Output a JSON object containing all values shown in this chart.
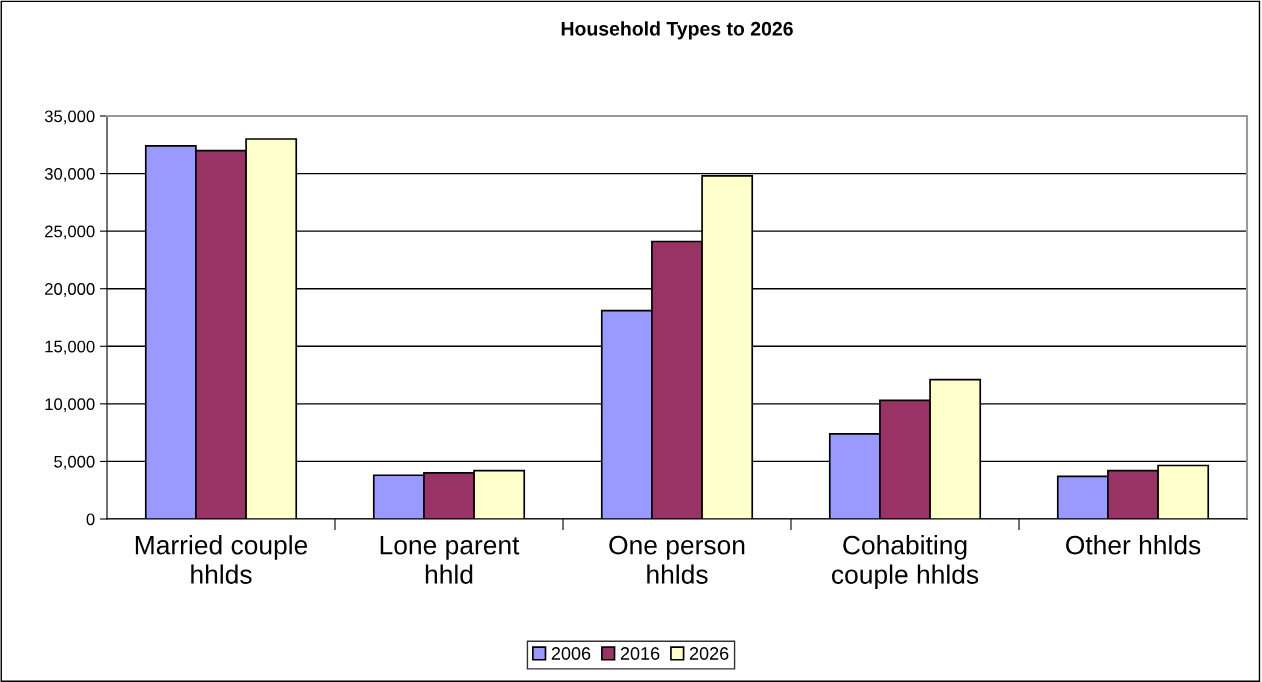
{
  "chart_data": {
    "type": "bar",
    "title": "Household Types to 2026",
    "categories": [
      "Married couple\nhhlds",
      "Lone parent\nhhld",
      "One person\nhhlds",
      "Cohabiting\ncouple hhlds",
      "Other hhlds"
    ],
    "series": [
      {
        "name": "2006",
        "color": "#9999ff",
        "values": [
          32400,
          3800,
          18100,
          7400,
          3700
        ]
      },
      {
        "name": "2016",
        "color": "#993366",
        "values": [
          32000,
          4000,
          24100,
          10300,
          4200
        ]
      },
      {
        "name": "2026",
        "color": "#ffffcc",
        "values": [
          33000,
          4200,
          29800,
          12100,
          4650
        ]
      }
    ],
    "ylim": [
      0,
      35000
    ],
    "yticks": [
      {
        "value": 0,
        "label": "0"
      },
      {
        "value": 5000,
        "label": "5,000"
      },
      {
        "value": 10000,
        "label": "10,000"
      },
      {
        "value": 15000,
        "label": "15,000"
      },
      {
        "value": 20000,
        "label": "20,000"
      },
      {
        "value": 25000,
        "label": "25,000"
      },
      {
        "value": 30000,
        "label": "30,000"
      },
      {
        "value": 35000,
        "label": "35,000"
      }
    ],
    "grid": "y",
    "legend": "bottom"
  }
}
